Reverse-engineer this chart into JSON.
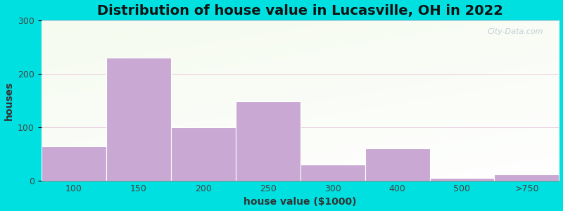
{
  "title": "Distribution of house value in Lucasville, OH in 2022",
  "xlabel": "house value ($1000)",
  "ylabel": "houses",
  "bar_labels": [
    "100",
    "150",
    "200",
    "250",
    "300",
    "400",
    "500",
    ">750"
  ],
  "bar_heights": [
    65,
    230,
    100,
    148,
    30,
    60,
    5,
    12
  ],
  "bin_edges": [
    0,
    1,
    2,
    3,
    4,
    5,
    6,
    7,
    8
  ],
  "bar_color": "#c9a8d4",
  "ylim": [
    0,
    300
  ],
  "yticks": [
    0,
    100,
    200,
    300
  ],
  "background_outer": "#00e0e0",
  "title_fontsize": 14,
  "axis_label_fontsize": 10,
  "tick_fontsize": 9,
  "watermark_text": "City-Data.com",
  "grid_color": "#ddaacc",
  "inner_bg": "#eef5e8"
}
